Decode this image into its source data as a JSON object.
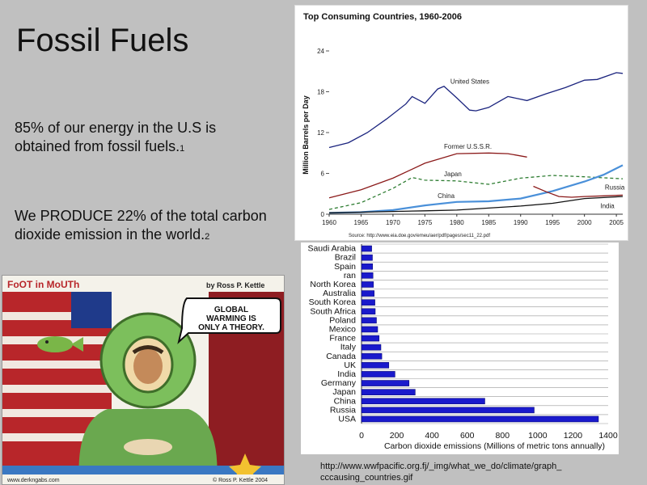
{
  "slide": {
    "title": "Fossil Fuels",
    "para1": "85% of our energy in the U.S is obtained from fossil fuels.",
    "para1_ref": "1",
    "para2": "We PRODUCE 22%  of the total carbon dioxide emission in the world.",
    "para2_ref": "2",
    "source_url": "http://www.wwfpacific.org.fj/_img/what_we_do/climate/graph_ cccausing_countries.gif"
  },
  "cartoon": {
    "title": "FoOT in MoUTh",
    "byline": "by Ross P. Kettle",
    "speech": "GLOBAL WARMING IS ONLY A THEORY.",
    "site": "www.derkngabs.com",
    "copyright": "© Ross P. Kettle 2004"
  },
  "chart_data": [
    {
      "type": "line",
      "title": "Top Consuming Countries, 1960-2006",
      "ylabel": "Million Barrels per Day",
      "xlabel": "",
      "xlim": [
        1960,
        2006
      ],
      "ylim": [
        0,
        24
      ],
      "x_ticks": [
        "1960",
        "1965",
        "1970",
        "1975",
        "1980",
        "1985",
        "1990",
        "1995",
        "2000",
        "2005"
      ],
      "y_ticks": [
        "0",
        "6",
        "12",
        "18",
        "24"
      ],
      "source": "Source: http://www.eia.doe.gov/emeu/aer/pdf/pages/sec11_22.pdf",
      "series": [
        {
          "name": "United States",
          "color": "#1a237e",
          "style": "solid",
          "x": [
            1960,
            1963,
            1966,
            1969,
            1972,
            1973,
            1975,
            1977,
            1978,
            1980,
            1982,
            1983,
            1985,
            1988,
            1991,
            1994,
            1997,
            2000,
            2002,
            2005,
            2006
          ],
          "values": [
            9.8,
            10.5,
            12.0,
            14.0,
            16.2,
            17.3,
            16.3,
            18.4,
            18.8,
            17.1,
            15.3,
            15.2,
            15.7,
            17.3,
            16.7,
            17.7,
            18.6,
            19.7,
            19.8,
            20.8,
            20.7
          ]
        },
        {
          "name": "Former U.S.S.R.",
          "color": "#8b1a1a",
          "style": "solid",
          "x": [
            1960,
            1965,
            1970,
            1975,
            1980,
            1985,
            1988,
            1991
          ],
          "values": [
            2.4,
            3.6,
            5.3,
            7.5,
            8.9,
            9.0,
            8.9,
            8.4
          ]
        },
        {
          "name": "Japan",
          "color": "#2e7d32",
          "style": "dashed",
          "x": [
            1960,
            1965,
            1970,
            1973,
            1975,
            1980,
            1985,
            1990,
            1995,
            2000,
            2006
          ],
          "values": [
            0.7,
            1.7,
            3.8,
            5.4,
            5.0,
            4.9,
            4.4,
            5.3,
            5.7,
            5.5,
            5.2
          ]
        },
        {
          "name": "China",
          "color": "#4a90d9",
          "style": "solid",
          "x": [
            1960,
            1965,
            1970,
            1975,
            1980,
            1985,
            1990,
            1995,
            2000,
            2003,
            2006
          ],
          "values": [
            0.2,
            0.3,
            0.6,
            1.3,
            1.8,
            1.9,
            2.3,
            3.4,
            4.8,
            5.8,
            7.2
          ]
        },
        {
          "name": "Russia",
          "color": "#8b1a1a",
          "style": "solid",
          "x": [
            1992,
            1994,
            1996,
            1998,
            2000,
            2003,
            2006
          ],
          "values": [
            4.1,
            3.3,
            2.6,
            2.5,
            2.6,
            2.7,
            2.8
          ]
        },
        {
          "name": "India",
          "color": "#111111",
          "style": "solid",
          "x": [
            1960,
            1965,
            1970,
            1975,
            1980,
            1985,
            1990,
            1995,
            2000,
            2006
          ],
          "values": [
            0.2,
            0.3,
            0.4,
            0.5,
            0.6,
            0.9,
            1.2,
            1.6,
            2.3,
            2.6
          ]
        }
      ]
    },
    {
      "type": "bar",
      "orientation": "horizontal",
      "xlabel": "Carbon dioxide emissions (Millions of metric tons annually)",
      "xlim": [
        0,
        1400
      ],
      "x_ticks": [
        "0",
        "200",
        "400",
        "600",
        "800",
        "1000",
        "1200",
        "1400"
      ],
      "categories": [
        "Saudi Arabia",
        "Brazil",
        "Spain",
        "Iran",
        "North Korea",
        "Australia",
        "South Korea",
        "South Africa",
        "Poland",
        "Mexico",
        "France",
        "Italy",
        "Canada",
        "UK",
        "India",
        "Germany",
        "Japan",
        "China",
        "Russia",
        "USA"
      ],
      "category_labels": [
        "Saudi Arabia",
        "Brazil",
        "Spain",
        "ran",
        "North Korea",
        "Australia",
        "South Korea",
        "South Africa",
        "Poland",
        "Mexico",
        "France",
        "Italy",
        "Canada",
        "UK",
        "India",
        "Germany",
        "Japan",
        "China",
        "Russia",
        "USA"
      ],
      "values": [
        58,
        62,
        63,
        65,
        68,
        72,
        76,
        78,
        85,
        92,
        100,
        110,
        115,
        155,
        190,
        270,
        305,
        700,
        980,
        1345
      ],
      "bar_color": "#1a1acc"
    }
  ]
}
